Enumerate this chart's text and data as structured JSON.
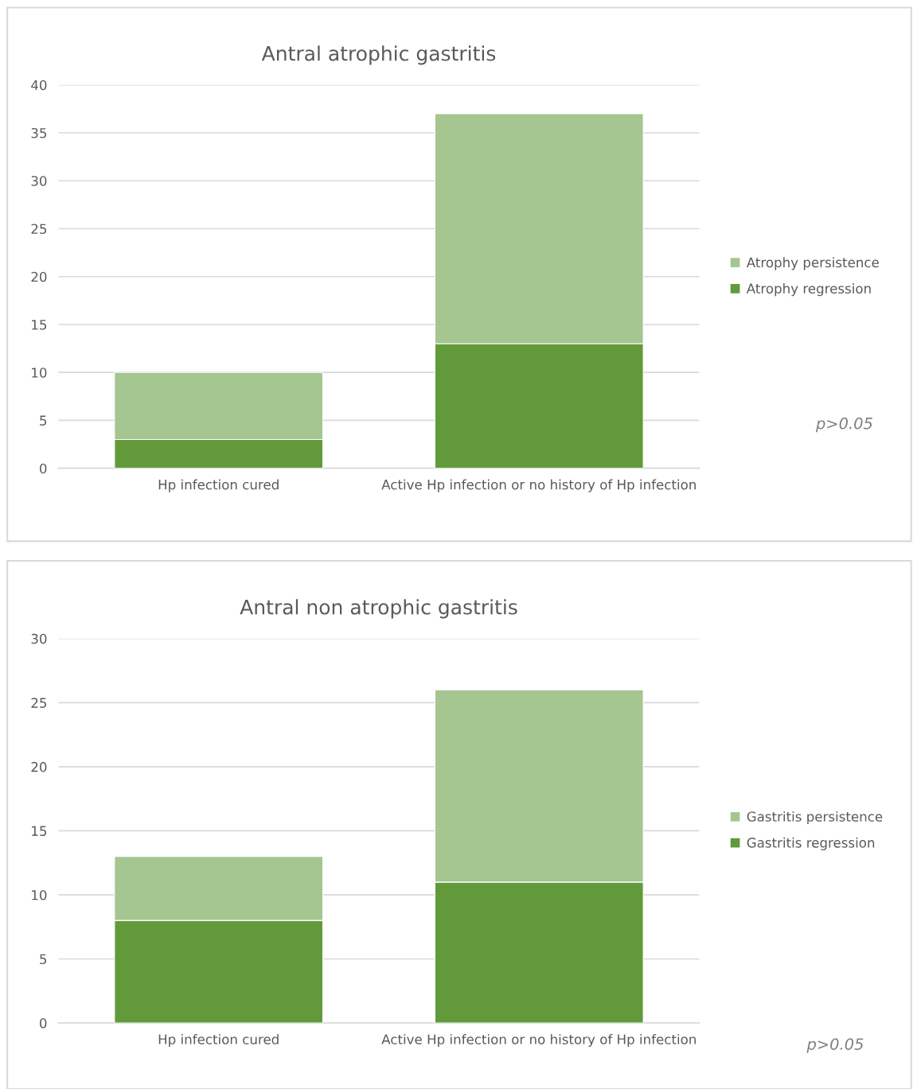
{
  "chart_data": [
    {
      "type": "bar",
      "title": "Antral atrophic gastritis",
      "categories": [
        "Hp infection cured",
        "Active Hp infection or no history of Hp infection"
      ],
      "stacked": true,
      "series": [
        {
          "name": "Atrophy regression",
          "color": "#629a3b",
          "values": [
            3,
            13
          ]
        },
        {
          "name": "Atrophy persistence",
          "color": "#a5c591",
          "values": [
            7,
            24
          ]
        }
      ],
      "ylim": [
        0,
        40
      ],
      "yticks": [
        0,
        5,
        10,
        15,
        20,
        25,
        30,
        35,
        40
      ],
      "grid": "y",
      "legend": "right",
      "annotations": [
        "p>0.05"
      ]
    },
    {
      "type": "bar",
      "title": "Antral non atrophic gastritis",
      "categories": [
        "Hp infection cured",
        "Active Hp infection or no history of Hp infection"
      ],
      "stacked": true,
      "series": [
        {
          "name": "Gastritis regression",
          "color": "#629a3b",
          "values": [
            8,
            11
          ]
        },
        {
          "name": "Gastritis persistence",
          "color": "#a5c591",
          "values": [
            5,
            15
          ]
        }
      ],
      "ylim": [
        0,
        30
      ],
      "yticks": [
        0,
        5,
        10,
        15,
        20,
        25,
        30
      ],
      "grid": "y",
      "legend": "right",
      "annotations": [
        "p>0.05"
      ]
    }
  ]
}
